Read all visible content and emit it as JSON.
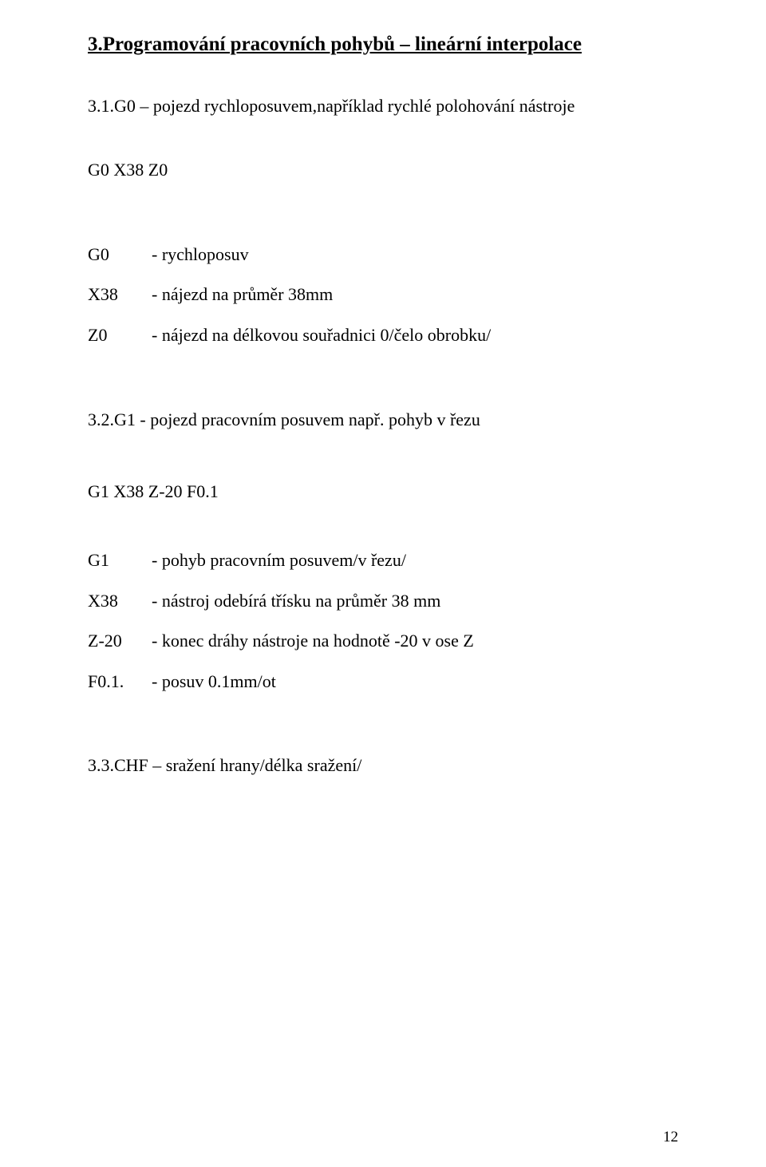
{
  "section": {
    "title": "3.Programování pracovních pohybů – lineární interpolace"
  },
  "sub31": {
    "intro": "3.1.G0 – pojezd rychloposuvem,například rychlé polohování nástroje",
    "code": "G0  X38  Z0",
    "defs": [
      {
        "key": "G0",
        "desc": "- rychloposuv"
      },
      {
        "key": "X38",
        "desc": "- nájezd na průměr 38mm"
      },
      {
        "key": "Z0",
        "desc": "- nájezd na délkovou souřadnici 0/čelo obrobku/"
      }
    ]
  },
  "sub32": {
    "intro": "3.2.G1  - pojezd pracovním posuvem  např. pohyb v řezu",
    "code": "G1  X38  Z-20  F0.1",
    "defs": [
      {
        "key": " G1",
        "desc": "- pohyb pracovním posuvem/v řezu/"
      },
      {
        "key": "X38",
        "desc": "- nástroj odebírá třísku na průměr 38 mm"
      },
      {
        "key": "Z-20",
        "desc": "- konec dráhy nástroje na hodnotě -20 v ose Z"
      },
      {
        "key": "F0.1.",
        "desc": "- posuv 0.1mm/ot"
      }
    ]
  },
  "sub33": {
    "intro": "3.3.CHF – sražení hrany/délka sražení/"
  },
  "pageNumber": "12"
}
